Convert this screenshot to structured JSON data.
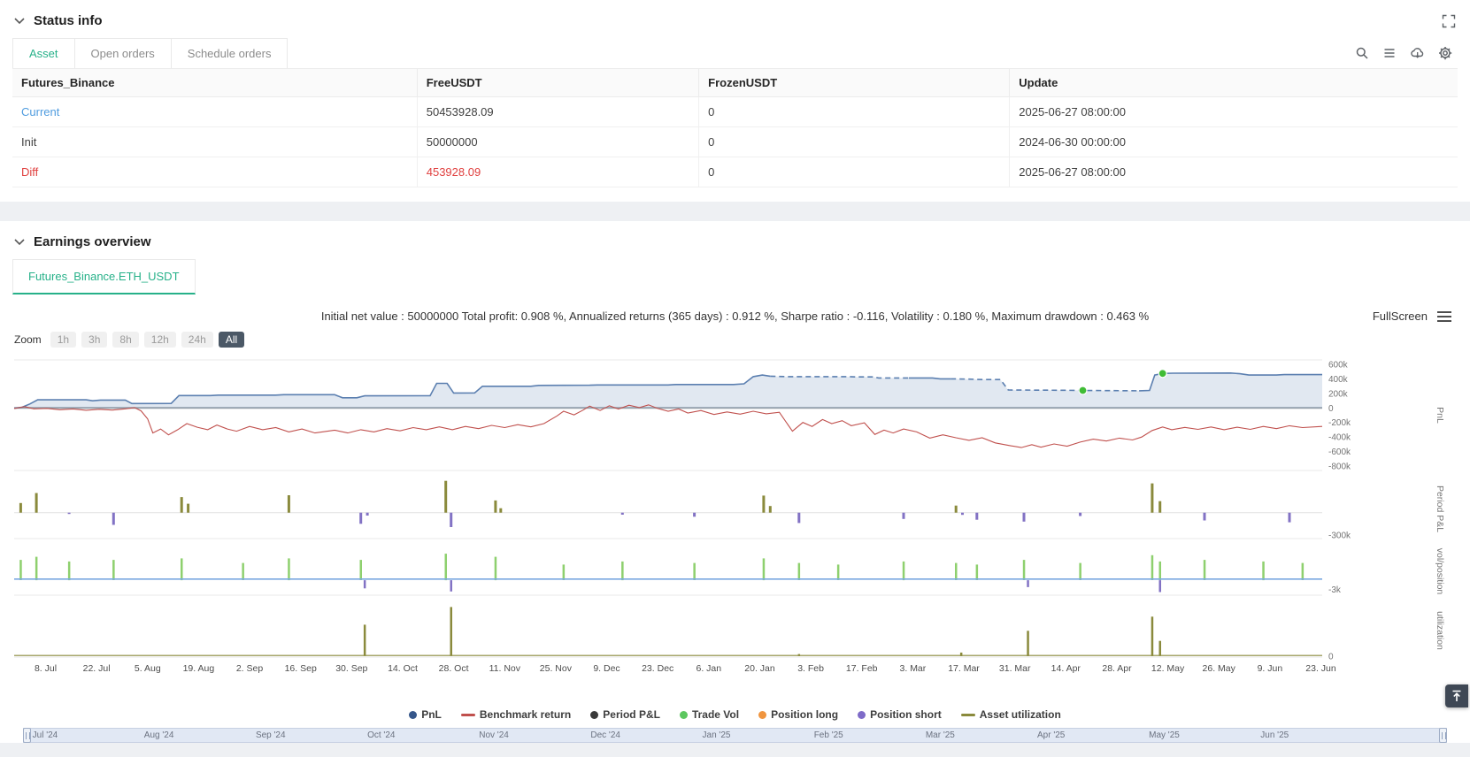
{
  "colors": {
    "accent_green": "#27b189",
    "link_blue": "#4f9cdf",
    "negative_red": "#e0403f"
  },
  "status_info": {
    "title": "Status info",
    "tabs": [
      {
        "label": "Asset",
        "active": true
      },
      {
        "label": "Open orders",
        "active": false
      },
      {
        "label": "Schedule orders",
        "active": false
      }
    ],
    "toolbar_icons": [
      "search",
      "list",
      "cloud-download",
      "settings"
    ],
    "table": {
      "headers": [
        "Futures_Binance",
        "FreeUSDT",
        "FrozenUSDT",
        "Update"
      ],
      "rows": [
        {
          "label": "Current",
          "values": [
            "50453928.09",
            "0",
            "2025-06-27 08:00:00"
          ],
          "style": "link"
        },
        {
          "label": "Init",
          "values": [
            "50000000",
            "0",
            "2024-06-30 00:00:00"
          ],
          "style": "normal"
        },
        {
          "label": "Diff",
          "values": [
            "453928.09",
            "0",
            "2025-06-27 08:00:00"
          ],
          "style": "diff"
        }
      ]
    }
  },
  "earnings_overview": {
    "title": "Earnings overview",
    "tab_label": "Futures_Binance.ETH_USDT",
    "summary": "Initial net value : 50000000 Total profit: 0.908 %, Annualized returns (365 days) : 0.912 %, Sharpe ratio : -0.116, Volatility : 0.180 %, Maximum drawdown : 0.463 %",
    "fullscreen_label": "FullScreen",
    "zoom": {
      "label": "Zoom",
      "options": [
        "1h",
        "3h",
        "8h",
        "12h",
        "24h",
        "All"
      ],
      "active": "All"
    }
  },
  "chart_data": {
    "type": "line",
    "colors": {
      "pnl": "#5b7fb0",
      "pnl_fill": "rgba(91,127,176,0.18)",
      "benchmark": "#c0504d",
      "olive": "#8a8a3c",
      "purple": "#8272c4",
      "trade_green": "#8ed06e",
      "vol_line": "#7aa8e0",
      "marker": "#3fbc35"
    },
    "panes": [
      {
        "id": "pnl",
        "ylabel": "PnL",
        "ymax": 660,
        "ymin": -860,
        "ticks": [
          {
            "v": 600,
            "label": "600k"
          },
          {
            "v": 400,
            "label": "400k"
          },
          {
            "v": 200,
            "label": "200k"
          },
          {
            "v": 0,
            "label": "0"
          },
          {
            "v": -200,
            "label": "-200k"
          },
          {
            "v": -400,
            "label": "-400k"
          },
          {
            "v": -600,
            "label": "-600k"
          },
          {
            "v": -800,
            "label": "-800k"
          }
        ]
      },
      {
        "id": "period_pnl",
        "ylabel": "Period P&L",
        "ymax": 450,
        "ymin": -350,
        "ticks": [
          {
            "v": -300,
            "label": "-300k"
          }
        ]
      },
      {
        "id": "vol_position",
        "ylabel": "vol/position",
        "ymax": 10.5,
        "ymin": -4.8,
        "ticks": [
          {
            "v": -3,
            "label": "-3k"
          }
        ]
      },
      {
        "id": "utilization",
        "ylabel": "utilization",
        "ymax": 1.03,
        "ymin": -0.02,
        "ticks": [
          {
            "v": 0,
            "label": "0"
          }
        ]
      }
    ],
    "pnl_segments": [
      {
        "dashed": false,
        "points": [
          [
            0.0,
            -5
          ],
          [
            0.006,
            10
          ],
          [
            0.012,
            55
          ],
          [
            0.018,
            112
          ],
          [
            0.055,
            112
          ],
          [
            0.06,
            98
          ],
          [
            0.066,
            108
          ],
          [
            0.085,
            108
          ],
          [
            0.09,
            60
          ],
          [
            0.12,
            62
          ],
          [
            0.126,
            170
          ],
          [
            0.15,
            170
          ],
          [
            0.156,
            176
          ],
          [
            0.2,
            176
          ],
          [
            0.206,
            182
          ],
          [
            0.245,
            182
          ],
          [
            0.251,
            140
          ],
          [
            0.262,
            140
          ],
          [
            0.268,
            166
          ],
          [
            0.318,
            168
          ],
          [
            0.323,
            338
          ],
          [
            0.331,
            338
          ],
          [
            0.336,
            205
          ],
          [
            0.352,
            206
          ],
          [
            0.358,
            298
          ],
          [
            0.395,
            298
          ],
          [
            0.401,
            310
          ],
          [
            0.44,
            312
          ],
          [
            0.446,
            316
          ],
          [
            0.5,
            316
          ],
          [
            0.506,
            322
          ],
          [
            0.55,
            322
          ],
          [
            0.558,
            332
          ],
          [
            0.565,
            430
          ],
          [
            0.572,
            452
          ],
          [
            0.578,
            436
          ]
        ]
      },
      {
        "dashed": true,
        "points": [
          [
            0.578,
            436
          ],
          [
            0.59,
            430
          ],
          [
            0.638,
            430
          ],
          [
            0.644,
            426
          ],
          [
            0.656,
            426
          ],
          [
            0.661,
            412
          ],
          [
            0.684,
            412
          ]
        ]
      },
      {
        "dashed": false,
        "points": [
          [
            0.684,
            412
          ],
          [
            0.702,
            412
          ],
          [
            0.708,
            400
          ],
          [
            0.716,
            400
          ]
        ]
      },
      {
        "dashed": true,
        "points": [
          [
            0.716,
            400
          ],
          [
            0.73,
            396
          ],
          [
            0.74,
            390
          ],
          [
            0.754,
            390
          ],
          [
            0.76,
            246
          ],
          [
            0.8,
            243
          ],
          [
            0.817,
            240
          ],
          [
            0.86,
            236
          ]
        ]
      },
      {
        "dashed": false,
        "points": [
          [
            0.86,
            236
          ],
          [
            0.868,
            240
          ],
          [
            0.872,
            452
          ],
          [
            0.878,
            474
          ],
          [
            0.886,
            478
          ],
          [
            0.93,
            480
          ],
          [
            0.937,
            470
          ],
          [
            0.944,
            452
          ],
          [
            0.965,
            452
          ],
          [
            0.971,
            458
          ],
          [
            1.0,
            458
          ]
        ]
      }
    ],
    "pnl_markers": [
      [
        0.817,
        240
      ],
      [
        0.878,
        474
      ]
    ],
    "benchmark": [
      [
        0.0,
        -8
      ],
      [
        0.008,
        18
      ],
      [
        0.015,
        -12
      ],
      [
        0.025,
        -6
      ],
      [
        0.035,
        -25
      ],
      [
        0.045,
        -14
      ],
      [
        0.055,
        -32
      ],
      [
        0.065,
        -18
      ],
      [
        0.075,
        -30
      ],
      [
        0.085,
        -12
      ],
      [
        0.092,
        5
      ],
      [
        0.097,
        -40
      ],
      [
        0.102,
        -150
      ],
      [
        0.106,
        -345
      ],
      [
        0.112,
        -290
      ],
      [
        0.118,
        -370
      ],
      [
        0.125,
        -300
      ],
      [
        0.132,
        -215
      ],
      [
        0.14,
        -265
      ],
      [
        0.148,
        -300
      ],
      [
        0.155,
        -235
      ],
      [
        0.163,
        -290
      ],
      [
        0.17,
        -320
      ],
      [
        0.18,
        -255
      ],
      [
        0.19,
        -300
      ],
      [
        0.2,
        -270
      ],
      [
        0.21,
        -330
      ],
      [
        0.22,
        -290
      ],
      [
        0.23,
        -345
      ],
      [
        0.245,
        -305
      ],
      [
        0.255,
        -345
      ],
      [
        0.265,
        -300
      ],
      [
        0.275,
        -330
      ],
      [
        0.285,
        -285
      ],
      [
        0.295,
        -315
      ],
      [
        0.305,
        -270
      ],
      [
        0.315,
        -300
      ],
      [
        0.325,
        -260
      ],
      [
        0.335,
        -300
      ],
      [
        0.345,
        -255
      ],
      [
        0.355,
        -285
      ],
      [
        0.365,
        -240
      ],
      [
        0.375,
        -270
      ],
      [
        0.385,
        -230
      ],
      [
        0.395,
        -260
      ],
      [
        0.405,
        -215
      ],
      [
        0.415,
        -110
      ],
      [
        0.42,
        -45
      ],
      [
        0.428,
        -95
      ],
      [
        0.435,
        -30
      ],
      [
        0.44,
        25
      ],
      [
        0.448,
        -35
      ],
      [
        0.455,
        30
      ],
      [
        0.462,
        -15
      ],
      [
        0.47,
        38
      ],
      [
        0.478,
        5
      ],
      [
        0.485,
        42
      ],
      [
        0.492,
        -8
      ],
      [
        0.5,
        -45
      ],
      [
        0.508,
        -15
      ],
      [
        0.515,
        -70
      ],
      [
        0.525,
        -35
      ],
      [
        0.535,
        -90
      ],
      [
        0.545,
        -55
      ],
      [
        0.555,
        -85
      ],
      [
        0.565,
        -45
      ],
      [
        0.575,
        -80
      ],
      [
        0.585,
        -60
      ],
      [
        0.595,
        -320
      ],
      [
        0.603,
        -200
      ],
      [
        0.61,
        -255
      ],
      [
        0.618,
        -160
      ],
      [
        0.625,
        -215
      ],
      [
        0.633,
        -175
      ],
      [
        0.64,
        -245
      ],
      [
        0.65,
        -205
      ],
      [
        0.658,
        -365
      ],
      [
        0.665,
        -305
      ],
      [
        0.672,
        -345
      ],
      [
        0.68,
        -290
      ],
      [
        0.69,
        -330
      ],
      [
        0.7,
        -415
      ],
      [
        0.71,
        -370
      ],
      [
        0.72,
        -410
      ],
      [
        0.73,
        -445
      ],
      [
        0.74,
        -410
      ],
      [
        0.75,
        -480
      ],
      [
        0.76,
        -515
      ],
      [
        0.77,
        -545
      ],
      [
        0.778,
        -505
      ],
      [
        0.785,
        -540
      ],
      [
        0.795,
        -495
      ],
      [
        0.805,
        -525
      ],
      [
        0.815,
        -470
      ],
      [
        0.825,
        -430
      ],
      [
        0.835,
        -455
      ],
      [
        0.845,
        -415
      ],
      [
        0.855,
        -440
      ],
      [
        0.862,
        -400
      ],
      [
        0.87,
        -310
      ],
      [
        0.878,
        -262
      ],
      [
        0.885,
        -300
      ],
      [
        0.895,
        -268
      ],
      [
        0.905,
        -295
      ],
      [
        0.915,
        -262
      ],
      [
        0.925,
        -300
      ],
      [
        0.935,
        -265
      ],
      [
        0.945,
        -295
      ],
      [
        0.955,
        -255
      ],
      [
        0.965,
        -285
      ],
      [
        0.975,
        -245
      ],
      [
        0.985,
        -270
      ],
      [
        1.0,
        -255
      ]
    ],
    "period_pnl_bars": [
      [
        0.005,
        130
      ],
      [
        0.017,
        265
      ],
      [
        0.042,
        -18
      ],
      [
        0.076,
        -165
      ],
      [
        0.128,
        210
      ],
      [
        0.133,
        120
      ],
      [
        0.21,
        235
      ],
      [
        0.265,
        -150
      ],
      [
        0.27,
        -40
      ],
      [
        0.33,
        430
      ],
      [
        0.334,
        -195
      ],
      [
        0.368,
        165
      ],
      [
        0.372,
        60
      ],
      [
        0.465,
        -28
      ],
      [
        0.52,
        -55
      ],
      [
        0.573,
        230
      ],
      [
        0.578,
        90
      ],
      [
        0.6,
        -140
      ],
      [
        0.68,
        -85
      ],
      [
        0.72,
        95
      ],
      [
        0.725,
        -30
      ],
      [
        0.736,
        -95
      ],
      [
        0.772,
        -120
      ],
      [
        0.815,
        -45
      ],
      [
        0.87,
        395
      ],
      [
        0.876,
        155
      ],
      [
        0.91,
        -105
      ],
      [
        0.975,
        -130
      ]
    ],
    "trade_vol_bars": [
      [
        0.005,
        6.5
      ],
      [
        0.017,
        7.5
      ],
      [
        0.042,
        6.0
      ],
      [
        0.076,
        6.5
      ],
      [
        0.128,
        7.0
      ],
      [
        0.175,
        5.5
      ],
      [
        0.21,
        7.0
      ],
      [
        0.265,
        6.5
      ],
      [
        0.33,
        8.5
      ],
      [
        0.368,
        7.5
      ],
      [
        0.42,
        5.0
      ],
      [
        0.465,
        6.0
      ],
      [
        0.52,
        5.5
      ],
      [
        0.573,
        7.0
      ],
      [
        0.6,
        5.5
      ],
      [
        0.63,
        5.0
      ],
      [
        0.68,
        6.0
      ],
      [
        0.72,
        5.5
      ],
      [
        0.736,
        5.0
      ],
      [
        0.772,
        6.5
      ],
      [
        0.815,
        5.5
      ],
      [
        0.87,
        8.0
      ],
      [
        0.876,
        6.0
      ],
      [
        0.91,
        6.5
      ],
      [
        0.955,
        6.0
      ],
      [
        0.985,
        5.5
      ]
    ],
    "position_short_bars": [
      [
        0.268,
        -2.6
      ],
      [
        0.334,
        -3.6
      ],
      [
        0.775,
        -2.2
      ],
      [
        0.876,
        -3.8
      ]
    ],
    "vol_line_value": 0.35,
    "utilization_bars": [
      [
        0.268,
        0.62
      ],
      [
        0.334,
        0.97
      ],
      [
        0.6,
        0.04
      ],
      [
        0.724,
        0.07
      ],
      [
        0.775,
        0.5
      ],
      [
        0.87,
        0.78
      ],
      [
        0.876,
        0.3
      ]
    ],
    "utilization_baseline": 0.012,
    "x_labels": [
      "8. Jul",
      "22. Jul",
      "5. Aug",
      "19. Aug",
      "2. Sep",
      "16. Sep",
      "30. Sep",
      "14. Oct",
      "28. Oct",
      "11. Nov",
      "25. Nov",
      "9. Dec",
      "23. Dec",
      "6. Jan",
      "20. Jan",
      "3. Feb",
      "17. Feb",
      "3. Mar",
      "17. Mar",
      "31. Mar",
      "14. Apr",
      "28. Apr",
      "12. May",
      "26. May",
      "9. Jun",
      "23. Jun"
    ],
    "legend": [
      {
        "label": "PnL",
        "color": "#35568a",
        "type": "dot"
      },
      {
        "label": "Benchmark return",
        "color": "#c0504d",
        "type": "line"
      },
      {
        "label": "Period P&L",
        "color": "#3a3a3a",
        "type": "dot"
      },
      {
        "label": "Trade Vol",
        "color": "#5cc75f",
        "type": "dot"
      },
      {
        "label": "Position long",
        "color": "#f0953f",
        "type": "dot"
      },
      {
        "label": "Position short",
        "color": "#7e6bc8",
        "type": "dot"
      },
      {
        "label": "Asset utilization",
        "color": "#8a8a3c",
        "type": "line"
      }
    ],
    "navigator_labels": [
      "Jul '24",
      "Aug '24",
      "Sep '24",
      "Oct '24",
      "Nov '24",
      "Dec '24",
      "Jan '25",
      "Feb '25",
      "Mar '25",
      "Apr '25",
      "May '25",
      "Jun '25"
    ]
  }
}
